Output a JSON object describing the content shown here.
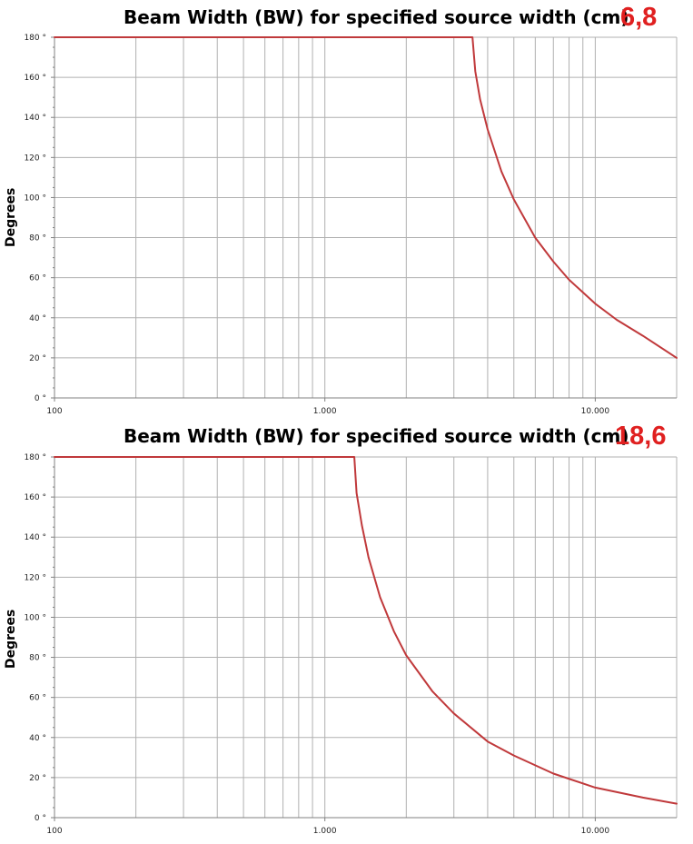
{
  "colors": {
    "curve": "#c0393b",
    "grid": "#b0b0b0",
    "axis": "#808080",
    "size_label": "#e02020"
  },
  "chart_data": [
    {
      "type": "line",
      "title": "Beam Width (BW) for specified source width (cm)",
      "size_label": "6,8",
      "ylabel": "Degrees",
      "xlabel": "",
      "x_scale": "log",
      "xlim": [
        100,
        20000
      ],
      "ylim": [
        0,
        180
      ],
      "x_tick_labels": [
        {
          "value": 100,
          "label": "100"
        },
        {
          "value": 1000,
          "label": "1.000"
        },
        {
          "value": 10000,
          "label": "10.000"
        }
      ],
      "y_tick_labels": [
        "0 °",
        "20 °",
        "40 °",
        "60 °",
        "80 °",
        "100 °",
        "120 °",
        "140 °",
        "160 °",
        "180 °"
      ],
      "grid": true,
      "series": [
        {
          "x": [
            100,
            1000,
            3515,
            3600,
            3750,
            4000,
            4500,
            5000,
            6000,
            7000,
            8000,
            10000,
            12000,
            15000,
            20000
          ],
          "values": [
            180,
            180,
            180,
            163,
            149,
            134,
            113,
            99,
            80,
            68,
            59,
            47,
            39,
            31,
            20
          ]
        }
      ]
    },
    {
      "type": "line",
      "title": "Beam Width (BW) for specified source width (cm)",
      "size_label": "18,6",
      "ylabel": "Degrees",
      "xlabel": "",
      "x_scale": "log",
      "xlim": [
        100,
        20000
      ],
      "ylim": [
        0,
        180
      ],
      "x_tick_labels": [
        {
          "value": 100,
          "label": "100"
        },
        {
          "value": 1000,
          "label": "1.000"
        },
        {
          "value": 10000,
          "label": "10.000"
        }
      ],
      "y_tick_labels": [
        "0 °",
        "20 °",
        "40 °",
        "60 °",
        "80 °",
        "100 °",
        "120 °",
        "140 °",
        "160 °",
        "180 °"
      ],
      "grid": true,
      "series": [
        {
          "x": [
            100,
            1000,
            1285,
            1310,
            1370,
            1450,
            1600,
            1800,
            2000,
            2500,
            3000,
            4000,
            5000,
            7000,
            10000,
            15000,
            20000
          ],
          "values": [
            180,
            180,
            180,
            162,
            146,
            130,
            110,
            93,
            81,
            63,
            52,
            38,
            31,
            22,
            15,
            10,
            7
          ]
        }
      ]
    }
  ]
}
